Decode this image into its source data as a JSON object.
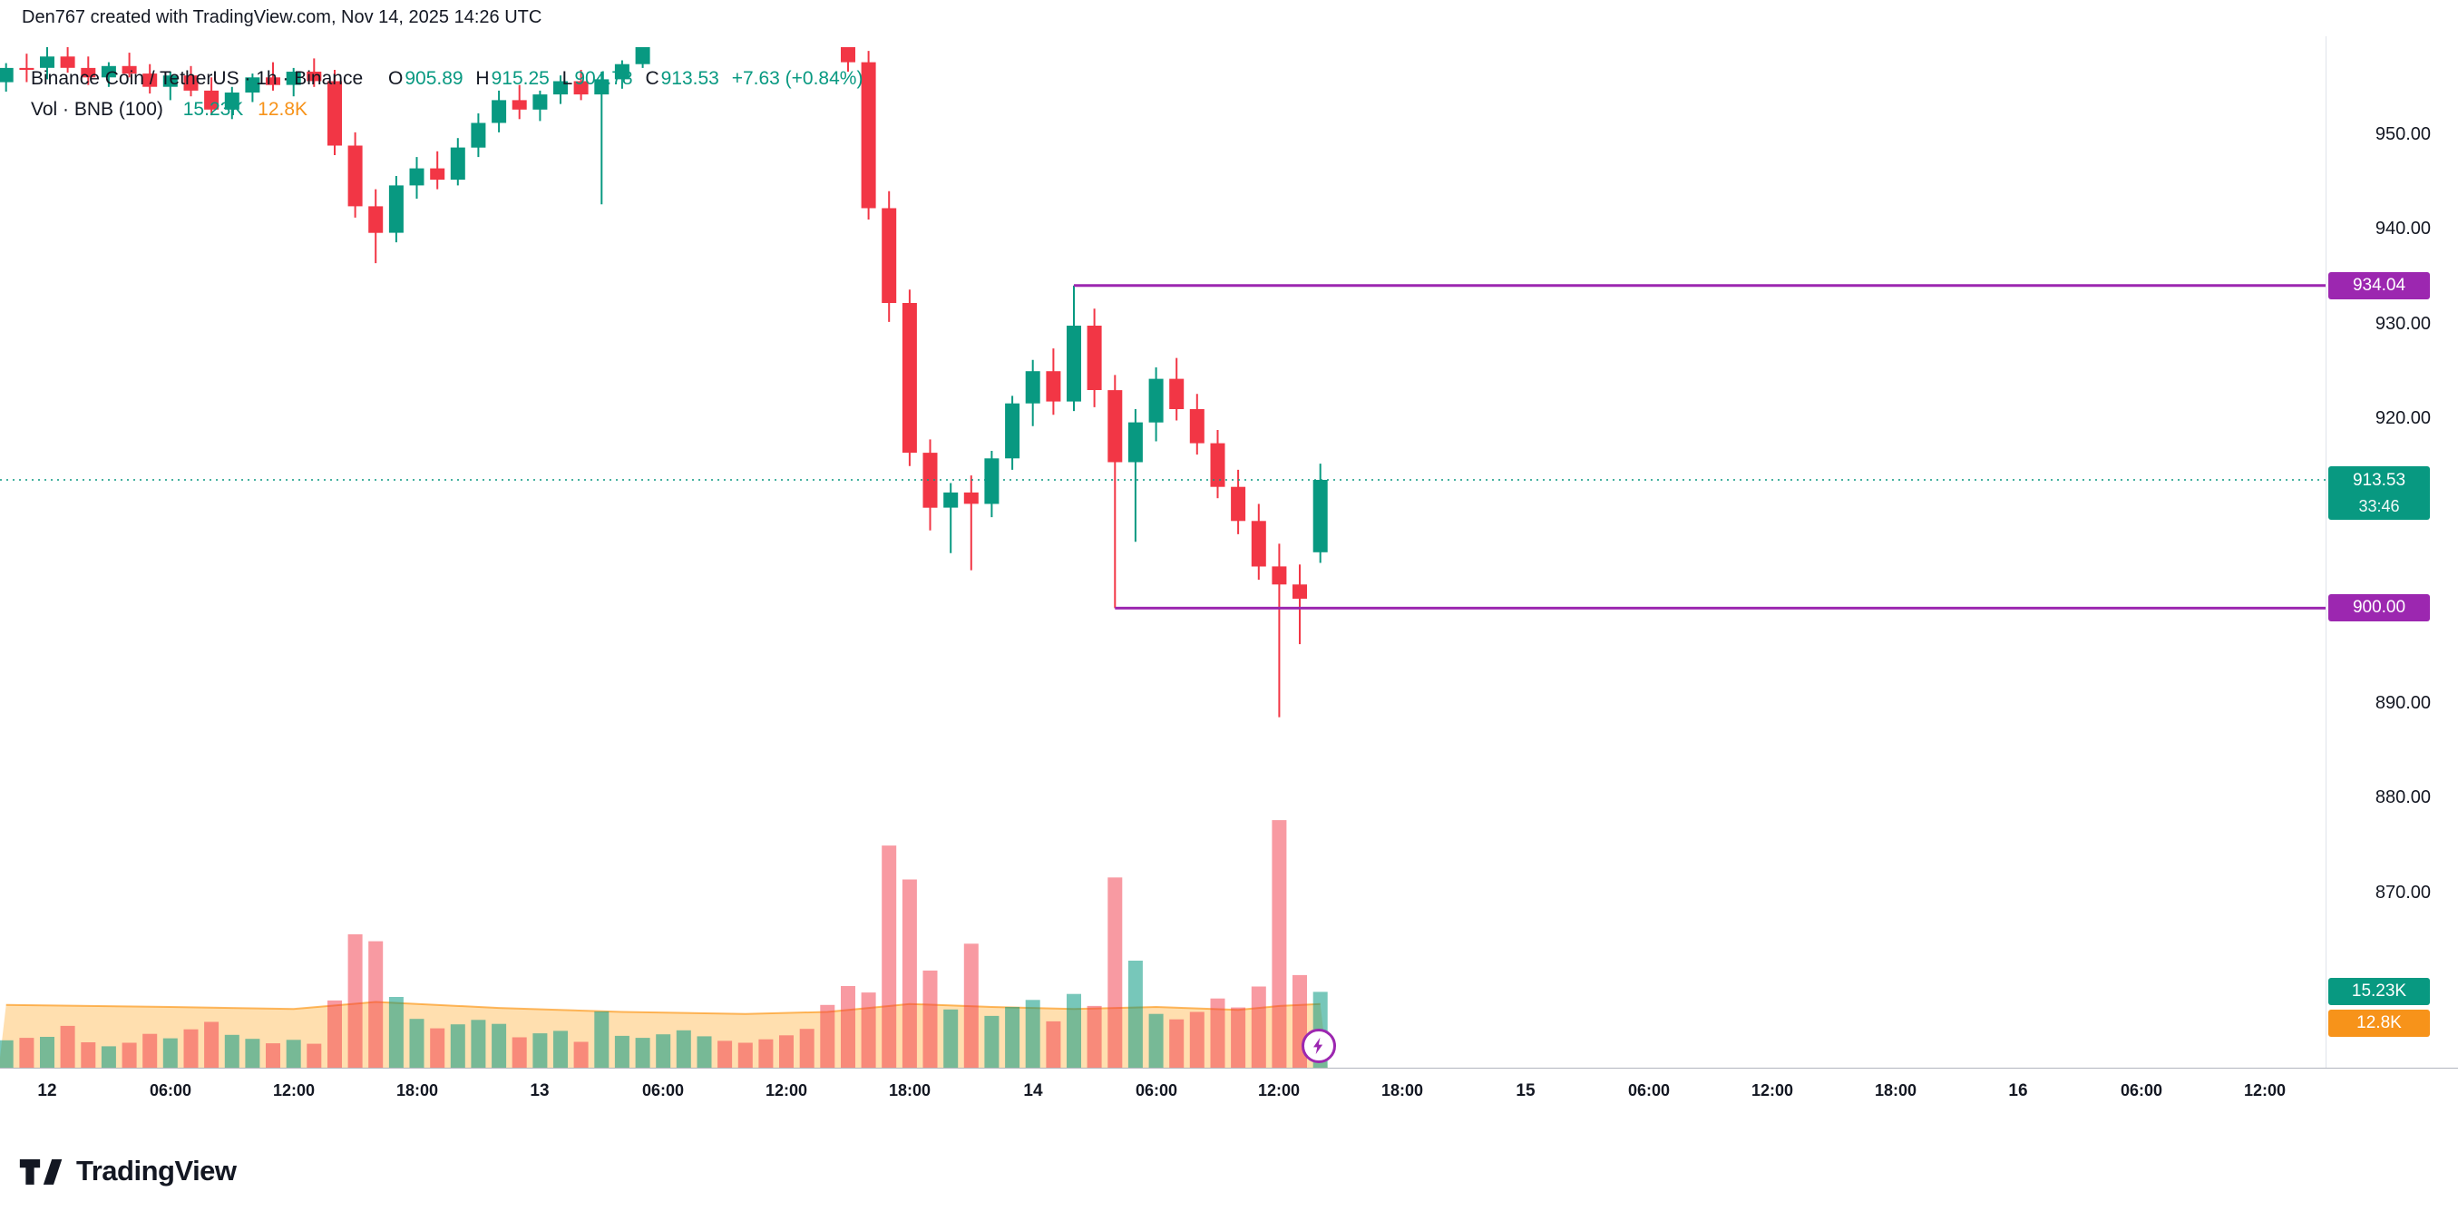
{
  "credit": "Den767 created with TradingView.com, Nov 14, 2025 14:26 UTC",
  "legend": {
    "title": "Binance Coin / TetherUS · 1h · Binance",
    "ohlc": [
      {
        "k": "O",
        "v": "905.89"
      },
      {
        "k": "H",
        "v": "915.25"
      },
      {
        "k": "L",
        "v": "904.78"
      },
      {
        "k": "C",
        "v": "913.53"
      }
    ],
    "change": "+7.63 (+0.84%)",
    "vol_title": "Vol · BNB (100)",
    "vol_value": "15.23K",
    "vol_ma_value": "12.8K"
  },
  "colors": {
    "up": "#089981",
    "down": "#F23645",
    "vol_up": "rgba(8,153,129,0.55)",
    "vol_down": "rgba(242,54,69,0.5)",
    "vol_ma_line": "#FB8C00",
    "vol_ma_fill": "rgba(255,183,77,0.45)",
    "level": "#9C27B0",
    "price_line": "#089981"
  },
  "price_axis": {
    "ticks": [
      "950.00",
      "940.00",
      "930.00",
      "920.00",
      "890.00",
      "880.00",
      "870.00"
    ],
    "price_badge": {
      "price": "913.53",
      "countdown": "33:46"
    },
    "level_badges": [
      "934.04",
      "900.00"
    ],
    "volume_badge": "15.23K",
    "volume_ma_badge": "12.8K"
  },
  "time_axis": [
    {
      "h": 0,
      "label": "12",
      "day": true
    },
    {
      "h": 6,
      "label": "06:00"
    },
    {
      "h": 12,
      "label": "12:00"
    },
    {
      "h": 18,
      "label": "18:00"
    },
    {
      "h": 24,
      "label": "13",
      "day": true
    },
    {
      "h": 30,
      "label": "06:00"
    },
    {
      "h": 36,
      "label": "12:00"
    },
    {
      "h": 42,
      "label": "18:00"
    },
    {
      "h": 48,
      "label": "14",
      "day": true
    },
    {
      "h": 54,
      "label": "06:00"
    },
    {
      "h": 60,
      "label": "12:00"
    },
    {
      "h": 66,
      "label": "18:00"
    },
    {
      "h": 72,
      "label": "15",
      "day": true
    },
    {
      "h": 78,
      "label": "06:00"
    },
    {
      "h": 84,
      "label": "12:00"
    },
    {
      "h": 90,
      "label": "18:00"
    },
    {
      "h": 96,
      "label": "16",
      "day": true
    },
    {
      "h": 102,
      "label": "06:00"
    },
    {
      "h": 108,
      "label": "12:00"
    }
  ],
  "chart_data": {
    "type": "candlestick",
    "symbol": "Binance Coin / TetherUS",
    "interval": "1h",
    "exchange": "Binance",
    "start": "Nov 11, 2025 22:00 UTC",
    "end": "Nov 14, 2025 14:00 UTC",
    "last_ohlc": {
      "open": 905.89,
      "high": 915.25,
      "low": 904.78,
      "close": 913.53,
      "change": "+7.63 (+0.84%)"
    },
    "current_price_line": 913.53,
    "price_range_visible": [
      877,
      959.5
    ],
    "levels": [
      {
        "price": 934.04,
        "label": "934.04",
        "from_index": 52
      },
      {
        "price": 900.0,
        "label": "900.00",
        "from_index": 54
      }
    ],
    "candles": [
      [
        955.5,
        957.5,
        954.5,
        957.0
      ],
      [
        957.0,
        958.5,
        955.5,
        956.8
      ],
      [
        957.0,
        959.5,
        955.8,
        958.2
      ],
      [
        958.2,
        960.0,
        956.5,
        957.0
      ],
      [
        957.0,
        958.2,
        955.2,
        956.0
      ],
      [
        956.0,
        957.6,
        955.0,
        957.2
      ],
      [
        957.2,
        958.6,
        956.0,
        956.4
      ],
      [
        956.4,
        957.4,
        954.3,
        955.0
      ],
      [
        955.0,
        956.6,
        953.6,
        956.2
      ],
      [
        956.2,
        957.2,
        954.0,
        954.6
      ],
      [
        954.6,
        956.0,
        952.0,
        952.6
      ],
      [
        952.6,
        955.0,
        951.6,
        954.4
      ],
      [
        954.4,
        956.4,
        953.4,
        956.0
      ],
      [
        956.0,
        957.6,
        954.6,
        955.2
      ],
      [
        955.2,
        957.0,
        954.0,
        956.6
      ],
      [
        956.6,
        958.0,
        955.0,
        955.6
      ],
      [
        955.6,
        956.8,
        947.8,
        948.8
      ],
      [
        948.8,
        950.2,
        941.2,
        942.4
      ],
      [
        942.4,
        944.2,
        936.4,
        939.6
      ],
      [
        939.6,
        945.6,
        938.6,
        944.6
      ],
      [
        944.6,
        947.6,
        943.2,
        946.4
      ],
      [
        946.4,
        948.2,
        944.2,
        945.2
      ],
      [
        945.2,
        949.6,
        944.6,
        948.6
      ],
      [
        948.6,
        952.2,
        947.6,
        951.2
      ],
      [
        951.2,
        954.6,
        950.2,
        953.6
      ],
      [
        953.6,
        955.2,
        951.6,
        952.6
      ],
      [
        952.6,
        954.6,
        951.4,
        954.2
      ],
      [
        954.2,
        956.2,
        953.2,
        955.6
      ],
      [
        955.6,
        956.8,
        953.6,
        954.2
      ],
      [
        954.2,
        956.6,
        942.6,
        955.8
      ],
      [
        955.8,
        957.8,
        954.8,
        957.4
      ],
      [
        957.4,
        960.6,
        957.0,
        960.2
      ],
      [
        960.2,
        962.8,
        959.8,
        962.4
      ],
      [
        962.4,
        964.8,
        961.6,
        964.2
      ],
      [
        964.2,
        966.2,
        963.2,
        965.8
      ],
      [
        965.8,
        966.8,
        963.8,
        964.2
      ],
      [
        964.2,
        965.6,
        962.6,
        963.2
      ],
      [
        963.2,
        964.6,
        961.6,
        962.2
      ],
      [
        962.2,
        963.6,
        960.6,
        961.2
      ],
      [
        961.2,
        962.6,
        959.9,
        960.6
      ],
      [
        960.6,
        961.8,
        959.7,
        960.2
      ],
      [
        960.2,
        961.2,
        956.6,
        957.6
      ],
      [
        957.6,
        958.8,
        941.0,
        942.2
      ],
      [
        942.2,
        944.0,
        930.2,
        932.2
      ],
      [
        932.2,
        933.6,
        915.0,
        916.4
      ],
      [
        916.4,
        917.8,
        908.2,
        910.6
      ],
      [
        910.6,
        913.2,
        905.8,
        912.2
      ],
      [
        912.2,
        914.0,
        904.0,
        911.0
      ],
      [
        911.0,
        916.6,
        909.6,
        915.8
      ],
      [
        915.8,
        922.4,
        914.6,
        921.6
      ],
      [
        921.6,
        926.2,
        919.2,
        925.0
      ],
      [
        925.0,
        927.4,
        920.4,
        921.8
      ],
      [
        921.8,
        934.04,
        920.8,
        929.8
      ],
      [
        929.8,
        931.6,
        921.2,
        923.0
      ],
      [
        923.0,
        924.6,
        900.0,
        915.4
      ],
      [
        915.4,
        921.0,
        907.0,
        919.6
      ],
      [
        919.6,
        925.4,
        917.6,
        924.2
      ],
      [
        924.2,
        926.4,
        919.8,
        921.0
      ],
      [
        921.0,
        922.6,
        916.2,
        917.4
      ],
      [
        917.4,
        918.8,
        911.6,
        912.8
      ],
      [
        912.8,
        914.6,
        907.8,
        909.2
      ],
      [
        909.2,
        911.0,
        903.0,
        904.4
      ],
      [
        904.4,
        906.8,
        888.5,
        902.5
      ],
      [
        902.5,
        904.6,
        896.2,
        901.0
      ],
      [
        905.89,
        915.25,
        904.78,
        913.53
      ]
    ],
    "volumes_k": [
      5.5,
      6.0,
      6.2,
      8.4,
      5.1,
      4.3,
      5.0,
      6.8,
      5.9,
      7.7,
      9.2,
      6.6,
      5.8,
      4.9,
      5.6,
      4.8,
      13.5,
      26.8,
      25.4,
      14.2,
      9.8,
      7.9,
      8.7,
      9.6,
      8.8,
      6.1,
      6.9,
      7.4,
      5.2,
      11.3,
      6.4,
      6.0,
      6.7,
      7.5,
      6.3,
      5.4,
      5.0,
      5.7,
      6.5,
      7.8,
      12.6,
      16.4,
      15.1,
      44.6,
      37.8,
      19.5,
      11.7,
      24.9,
      10.4,
      12.2,
      13.6,
      9.3,
      14.8,
      12.4,
      38.2,
      21.5,
      10.8,
      9.7,
      11.2,
      13.9,
      12.1,
      16.3,
      49.7,
      18.6,
      15.23
    ],
    "volume_ma_k": [
      [
        0,
        12.6
      ],
      [
        8,
        12.2
      ],
      [
        14,
        11.8
      ],
      [
        18,
        13.2
      ],
      [
        24,
        12.0
      ],
      [
        30,
        11.2
      ],
      [
        36,
        10.8
      ],
      [
        40,
        11.2
      ],
      [
        44,
        12.8
      ],
      [
        48,
        12.2
      ],
      [
        52,
        11.8
      ],
      [
        56,
        12.2
      ],
      [
        60,
        11.6
      ],
      [
        62,
        12.4
      ],
      [
        64,
        12.8
      ]
    ],
    "volume_last": "15.23K",
    "volume_ma_last": "12.8K",
    "grid": false,
    "legend_position": "top-left"
  },
  "marker": {
    "name": "lightning"
  },
  "footer": {
    "brand": "TradingView"
  }
}
